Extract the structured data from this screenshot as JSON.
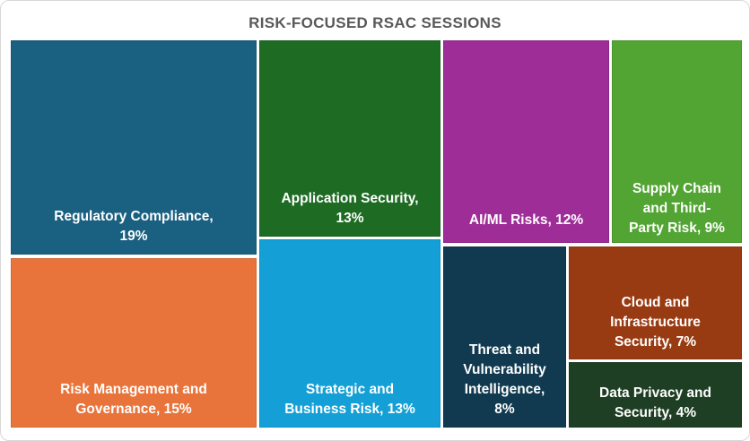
{
  "title": "RISK-FOCUSED RSAC SESSIONS",
  "title_color": "#595959",
  "chart_data": {
    "type": "treemap",
    "title": "RISK-FOCUSED RSAC SESSIONS",
    "unit": "%",
    "categories": [
      "Regulatory Compliance",
      "Risk Management and Governance",
      "Application Security",
      "Strategic and Business Risk",
      "AI/ML Risks",
      "Supply Chain and Third-Party Risk",
      "Threat and Vulnerability Intelligence",
      "Cloud and Infrastructure Security",
      "Data Privacy and Security"
    ],
    "values": [
      19,
      15,
      13,
      13,
      12,
      9,
      8,
      7,
      4
    ],
    "colors": [
      "#1A6080",
      "#E9743B",
      "#1E6B24",
      "#14A0D6",
      "#9E2D98",
      "#52A433",
      "#113A50",
      "#993B12",
      "#1E3F23"
    ],
    "label_color": "#ffffff",
    "legend": "none",
    "layout_hint": "labels anchored bottom-center of each tile"
  },
  "tiles": [
    {
      "category": "Regulatory Compliance",
      "value": 19,
      "color": "#1A6080",
      "label": "Regulatory Compliance,\n19%"
    },
    {
      "category": "Risk Management and Governance",
      "value": 15,
      "color": "#E9743B",
      "label": "Risk Management and\nGovernance, 15%"
    },
    {
      "category": "Application Security",
      "value": 13,
      "color": "#1E6B24",
      "label": "Application Security,\n13%"
    },
    {
      "category": "Strategic and Business Risk",
      "value": 13,
      "color": "#14A0D6",
      "label": "Strategic and\nBusiness Risk, 13%"
    },
    {
      "category": "AI/ML Risks",
      "value": 12,
      "color": "#9E2D98",
      "label": "AI/ML Risks, 12%"
    },
    {
      "category": "Supply Chain and Third-Party Risk",
      "value": 9,
      "color": "#52A433",
      "label": "Supply Chain\nand Third-\nParty Risk, 9%"
    },
    {
      "category": "Threat and Vulnerability Intelligence",
      "value": 8,
      "color": "#113A50",
      "label": "Threat and\nVulnerability\nIntelligence,\n8%"
    },
    {
      "category": "Cloud and Infrastructure Security",
      "value": 7,
      "color": "#993B12",
      "label": "Cloud and\nInfrastructure\nSecurity, 7%"
    },
    {
      "category": "Data Privacy and Security",
      "value": 4,
      "color": "#1E3F23",
      "label": "Data Privacy and\nSecurity, 4%"
    }
  ]
}
